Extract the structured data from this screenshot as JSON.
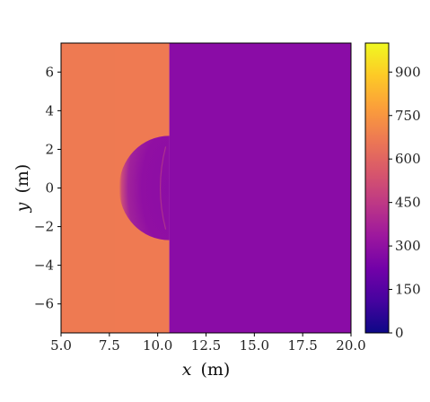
{
  "chart_data": {
    "type": "heatmap",
    "title": "",
    "xlabel": {
      "var": "x",
      "unit": "(m)"
    },
    "ylabel": {
      "var": "y",
      "unit": "(m)"
    },
    "xlim": [
      5.0,
      20.0
    ],
    "ylim": [
      -7.5,
      7.5
    ],
    "x_ticks": [
      5.0,
      7.5,
      10.0,
      12.5,
      15.0,
      17.5,
      20.0
    ],
    "x_tick_labels": [
      "5.0",
      "7.5",
      "10.0",
      "12.5",
      "15.0",
      "17.5",
      "20.0"
    ],
    "y_ticks": [
      6,
      4,
      2,
      0,
      -2,
      -4,
      -6
    ],
    "y_tick_labels": [
      "6",
      "4",
      "2",
      "0",
      "−2",
      "−4",
      "−6"
    ],
    "colorbar": {
      "colormap": "plasma",
      "range": [
        0,
        1000
      ],
      "ticks": [
        0,
        150,
        300,
        450,
        600,
        750,
        900
      ],
      "tick_labels": [
        "0",
        "150",
        "300",
        "450",
        "600",
        "750",
        "900"
      ],
      "colors": [
        "#0d0887",
        "#46039f",
        "#7201a8",
        "#9c179e",
        "#bd3786",
        "#d8576b",
        "#ed7953",
        "#fb9f3a",
        "#fdca26",
        "#f0f921"
      ]
    },
    "field": {
      "background_value": 245,
      "shocked_region_value": 730,
      "shock_front_x": 10.6,
      "disturbance": {
        "center_x": 10.6,
        "center_y": 0.0,
        "radius_x": 2.6,
        "radius_y": 2.7,
        "inner_value": 245,
        "shocked_color": "#ee7a52",
        "background_color": "#8a0ca6",
        "inner_color": "#8c0da5"
      }
    }
  }
}
